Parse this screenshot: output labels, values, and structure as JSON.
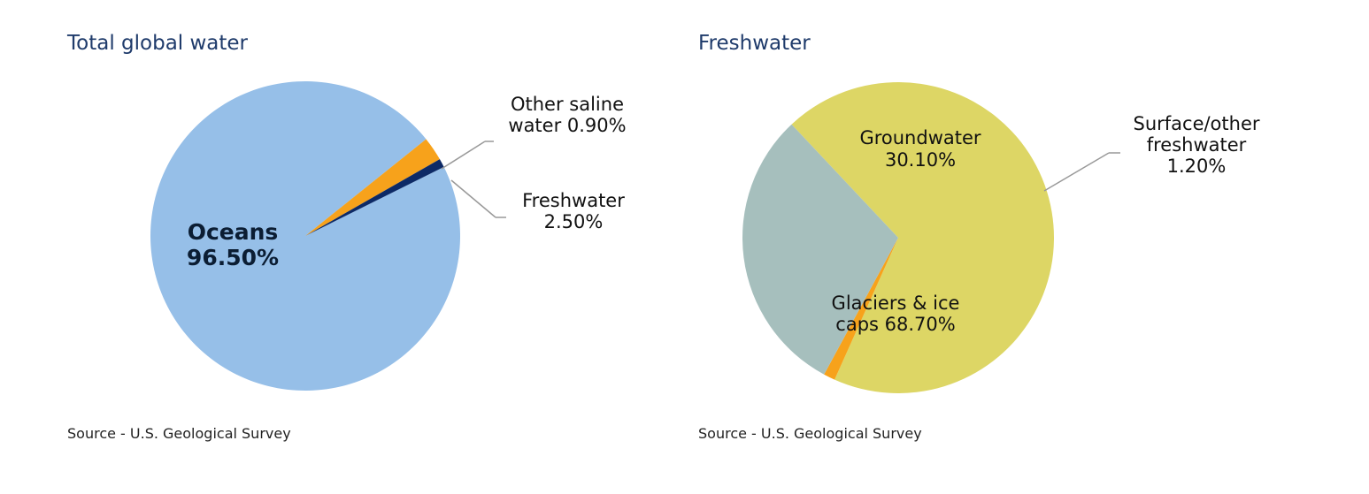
{
  "chart_data": [
    {
      "type": "pie",
      "title": "Total global water",
      "source": "Source - U.S. Geological Survey",
      "slices": [
        {
          "label": "Oceans",
          "value": 96.5,
          "value_label": "96.50%",
          "color": "#96bfe8"
        },
        {
          "label": "Freshwater",
          "value": 2.5,
          "value_label": "2.50%",
          "color": "#f7a21b"
        },
        {
          "label": "Other saline water",
          "value": 0.9,
          "value_label": "0.90%",
          "color": "#0d2a66"
        }
      ],
      "text": {
        "oceans_line1": "Oceans",
        "oceans_line2": "96.50%",
        "saline_line1": "Other saline",
        "saline_line2": "water 0.90%",
        "fresh_line1": "Freshwater",
        "fresh_line2": "2.50%"
      }
    },
    {
      "type": "pie",
      "title": "Freshwater",
      "source": "Source - U.S. Geological Survey",
      "slices": [
        {
          "label": "Glaciers & ice caps",
          "value": 68.7,
          "value_label": "68.70%",
          "color": "#ddd665"
        },
        {
          "label": "Surface/other freshwater",
          "value": 1.2,
          "value_label": "1.20%",
          "color": "#f7a21b"
        },
        {
          "label": "Groundwater",
          "value": 30.1,
          "value_label": "30.10%",
          "color": "#a6bfbd"
        }
      ],
      "text": {
        "ground_line1": "Groundwater",
        "ground_line2": "30.10%",
        "surface_line1": "Surface/other",
        "surface_line2": "freshwater",
        "surface_line3": "1.20%",
        "glacier_line1": "Glaciers & ice",
        "glacier_line2": "caps 68.70%"
      }
    }
  ]
}
